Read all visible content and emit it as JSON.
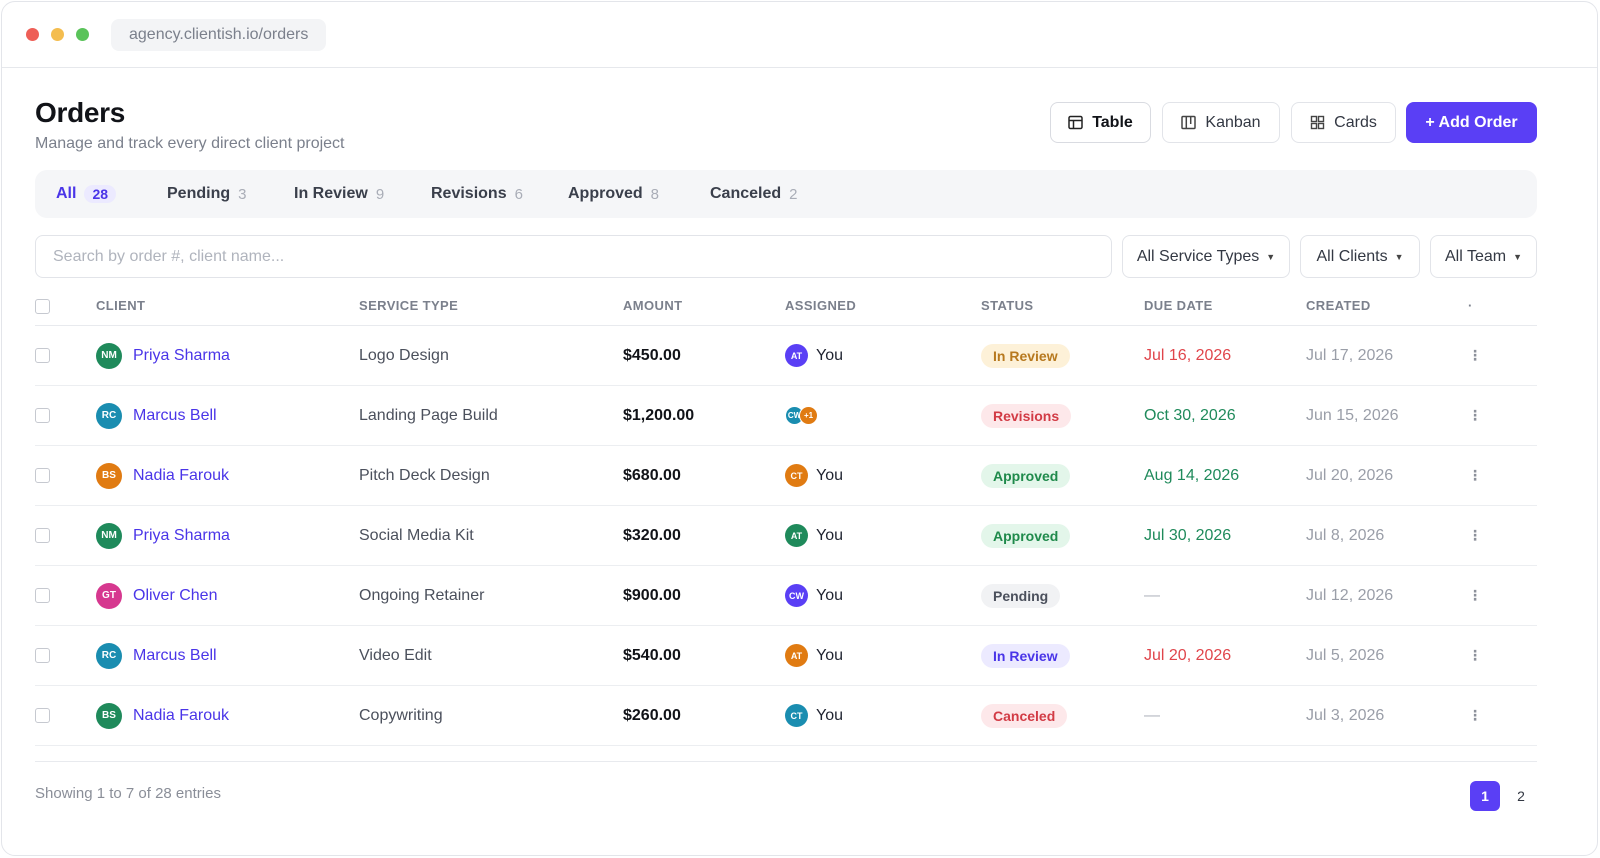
{
  "browser": {
    "url": "agency.clientish.io/orders"
  },
  "header": {
    "title": "Orders",
    "subtitle": "Manage and track every direct client project"
  },
  "views": {
    "table": "Table",
    "kanban": "Kanban",
    "cards": "Cards",
    "add_order": "+ Add Order"
  },
  "tabs": [
    {
      "label": "All",
      "count": "28"
    },
    {
      "label": "Pending",
      "count": "3"
    },
    {
      "label": "In Review",
      "count": "9"
    },
    {
      "label": "Revisions",
      "count": "6"
    },
    {
      "label": "Approved",
      "count": "8"
    },
    {
      "label": "Canceled",
      "count": "2"
    }
  ],
  "search": {
    "placeholder": "Search by order #, client name..."
  },
  "filters": {
    "service_types": "All Service Types",
    "clients": "All Clients",
    "team": "All Team"
  },
  "table": {
    "columns": {
      "client": "CLIENT",
      "service": "SERVICE TYPE",
      "amount": "AMOUNT",
      "assigned": "ASSIGNED",
      "status": "STATUS",
      "due": "DUE DATE",
      "created": "CREATED",
      "more": "·"
    },
    "rows": [
      {
        "initials": "NM",
        "avatar_color": "#1f8a5b",
        "client": "Priya Sharma",
        "service": "Logo Design",
        "amount": "$450.00",
        "assignee_initials": "AT",
        "assignee_color": "#5a3ff5",
        "assignee": "You",
        "status": "In Review",
        "status_bg": "#fdf1d8",
        "status_fg": "#b7791f",
        "due": "Jul 16, 2026",
        "due_color": "#e0454b",
        "created": "Jul 17, 2026"
      },
      {
        "initials": "RC",
        "avatar_color": "#1a8db0",
        "client": "Marcus Bell",
        "service": "Landing Page Build",
        "amount": "$1,200.00",
        "assignees": [
          {
            "initials": "CW",
            "color": "#1a8db0"
          },
          {
            "initials": "+1",
            "color": "#e07b12"
          }
        ],
        "status": "Revisions",
        "status_bg": "#fde8ea",
        "status_fg": "#d23b45",
        "due": "Oct 30, 2026",
        "due_color": "#1f8a5b",
        "created": "Jun 15, 2026"
      },
      {
        "initials": "BS",
        "avatar_color": "#e07b12",
        "client": "Nadia Farouk",
        "service": "Pitch Deck Design",
        "amount": "$680.00",
        "assignee_initials": "CT",
        "assignee_color": "#e07b12",
        "assignee": "You",
        "status": "Approved",
        "status_bg": "#e3f6ea",
        "status_fg": "#1f8a4b",
        "due": "Aug 14, 2026",
        "due_color": "#1f8a5b",
        "created": "Jul 20, 2026"
      },
      {
        "initials": "NM",
        "avatar_color": "#1f8a5b",
        "client": "Priya Sharma",
        "service": "Social Media Kit",
        "amount": "$320.00",
        "assignee_initials": "AT",
        "assignee_color": "#1f8a5b",
        "assignee": "You",
        "status": "Approved",
        "status_bg": "#e3f6ea",
        "status_fg": "#1f8a4b",
        "due": "Jul 30, 2026",
        "due_color": "#1f8a5b",
        "created": "Jul 8, 2026"
      },
      {
        "initials": "GT",
        "avatar_color": "#d6388f",
        "client": "Oliver Chen",
        "service": "Ongoing Retainer",
        "amount": "$900.00",
        "assignee_initials": "CW",
        "assignee_color": "#5a3ff5",
        "assignee": "You",
        "status": "Pending",
        "status_bg": "#f1f2f4",
        "status_fg": "#4b505c",
        "due": "—",
        "due_color": "#b0b4bd",
        "created": "Jul 12, 2026"
      },
      {
        "initials": "RC",
        "avatar_color": "#1a8db0",
        "client": "Marcus Bell",
        "service": "Video Edit",
        "amount": "$540.00",
        "assignee_initials": "AT",
        "assignee_color": "#e07b12",
        "assignee": "You",
        "status": "In Review",
        "status_bg": "#eceaff",
        "status_fg": "#4a35e8",
        "due": "Jul 20, 2026",
        "due_color": "#e0454b",
        "created": "Jul 5, 2026"
      },
      {
        "initials": "BS",
        "avatar_color": "#1f8a5b",
        "client": "Nadia Farouk",
        "service": "Copywriting",
        "amount": "$260.00",
        "assignee_initials": "CT",
        "assignee_color": "#1a8db0",
        "assignee": "You",
        "status": "Canceled",
        "status_bg": "#fde8ea",
        "status_fg": "#d23b45",
        "due": "—",
        "due_color": "#b0b4bd",
        "created": "Jul 3, 2026"
      }
    ]
  },
  "footer": {
    "entries": "Showing 1 to 7 of 28 entries",
    "pages": [
      "1",
      "2"
    ],
    "current_page": "1"
  },
  "icons": {
    "table": "table-icon",
    "kanban": "kanban-icon",
    "cards": "grid-icon",
    "caret": "caret-down-icon",
    "more": "kebab-icon"
  }
}
